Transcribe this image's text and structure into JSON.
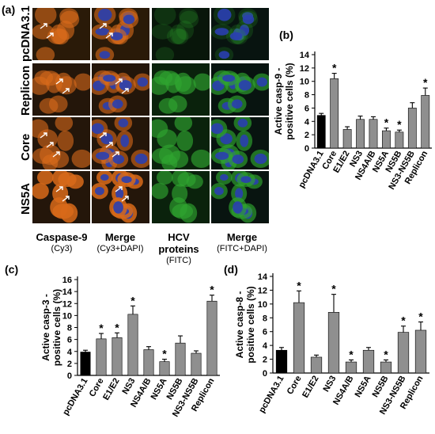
{
  "panel_letters": {
    "a": "(a)",
    "b": "(b)",
    "c": "(c)",
    "d": "(d)"
  },
  "micrograph": {
    "row_labels": [
      "pcDNA3.1",
      "Replicon",
      "Core",
      "NS5A"
    ],
    "columns": [
      {
        "title": "Caspase-9",
        "subtitle": "(Cy3)"
      },
      {
        "title": "Merge",
        "subtitle": "(Cy3+DAPI)"
      },
      {
        "title": "HCV proteins",
        "subtitle": "(FITC)"
      },
      {
        "title": "Merge",
        "subtitle": "(FITC+DAPI)"
      }
    ],
    "colors": {
      "cy3": "#d86a1a",
      "dapi": "#2a3fb0",
      "fitc": "#2fa42f",
      "background": "#0c0a06"
    }
  },
  "chart_data": [
    {
      "id": "b",
      "type": "bar",
      "ylabel": "Active casp-9 - positive cells (%)",
      "ylim": [
        0,
        14
      ],
      "yticks": [
        0,
        2,
        4,
        6,
        8,
        10,
        12,
        14
      ],
      "categories": [
        "pcDNA3.1",
        "Core",
        "E1/E2",
        "NS3",
        "NS4A/B",
        "NS5A",
        "NS5B",
        "NS3-NS5B",
        "Replicon"
      ],
      "values": [
        4.9,
        10.4,
        2.8,
        4.3,
        4.3,
        2.6,
        2.4,
        6.0,
        7.9
      ],
      "errors": [
        0.3,
        0.8,
        0.4,
        0.5,
        0.4,
        0.4,
        0.3,
        0.8,
        1.1
      ],
      "significant": [
        "",
        "*",
        "",
        "",
        "",
        "*",
        "*",
        "",
        "*"
      ],
      "colors": [
        "#000000",
        "#8f8f8f",
        "#8f8f8f",
        "#8f8f8f",
        "#8f8f8f",
        "#8f8f8f",
        "#8f8f8f",
        "#8f8f8f",
        "#8f8f8f"
      ]
    },
    {
      "id": "c",
      "type": "bar",
      "ylabel": "Active casp-3 - positive cells (%)",
      "ylim": [
        0,
        16
      ],
      "yticks": [
        0,
        2,
        4,
        6,
        8,
        10,
        12,
        14,
        16
      ],
      "categories": [
        "pcDNA3.1",
        "Core",
        "E1/E2",
        "NS3",
        "NS4A/B",
        "NS5A",
        "NS5B",
        "NS3-NS5B",
        "Replicon"
      ],
      "values": [
        3.9,
        6.1,
        6.3,
        10.2,
        4.3,
        2.3,
        5.4,
        3.7,
        12.4
      ],
      "errors": [
        0.3,
        0.9,
        0.8,
        1.4,
        0.5,
        0.4,
        1.2,
        0.4,
        1.0
      ],
      "significant": [
        "",
        "*",
        "*",
        "*",
        "",
        "*",
        "",
        "",
        "*"
      ],
      "colors": [
        "#000000",
        "#8f8f8f",
        "#8f8f8f",
        "#8f8f8f",
        "#8f8f8f",
        "#8f8f8f",
        "#8f8f8f",
        "#8f8f8f",
        "#8f8f8f"
      ]
    },
    {
      "id": "d",
      "type": "bar",
      "ylabel": "Active casp-8 - positive cells (%)",
      "ylim": [
        0,
        14
      ],
      "yticks": [
        0,
        2,
        4,
        6,
        8,
        10,
        12,
        14
      ],
      "categories": [
        "pcDNA3.1",
        "Core",
        "E1/E2",
        "NS3",
        "NS4A/B",
        "NS5A",
        "NS5B",
        "NS3-NS5B",
        "Replicon"
      ],
      "values": [
        3.3,
        10.2,
        2.3,
        8.8,
        1.6,
        3.3,
        1.6,
        5.9,
        6.2
      ],
      "errors": [
        0.4,
        1.7,
        0.3,
        2.6,
        0.3,
        0.4,
        0.3,
        0.9,
        1.2
      ],
      "significant": [
        "",
        "*",
        "",
        "*",
        "*",
        "",
        "*",
        "*",
        "*"
      ],
      "colors": [
        "#000000",
        "#8f8f8f",
        "#8f8f8f",
        "#8f8f8f",
        "#8f8f8f",
        "#8f8f8f",
        "#8f8f8f",
        "#8f8f8f",
        "#8f8f8f"
      ]
    }
  ]
}
